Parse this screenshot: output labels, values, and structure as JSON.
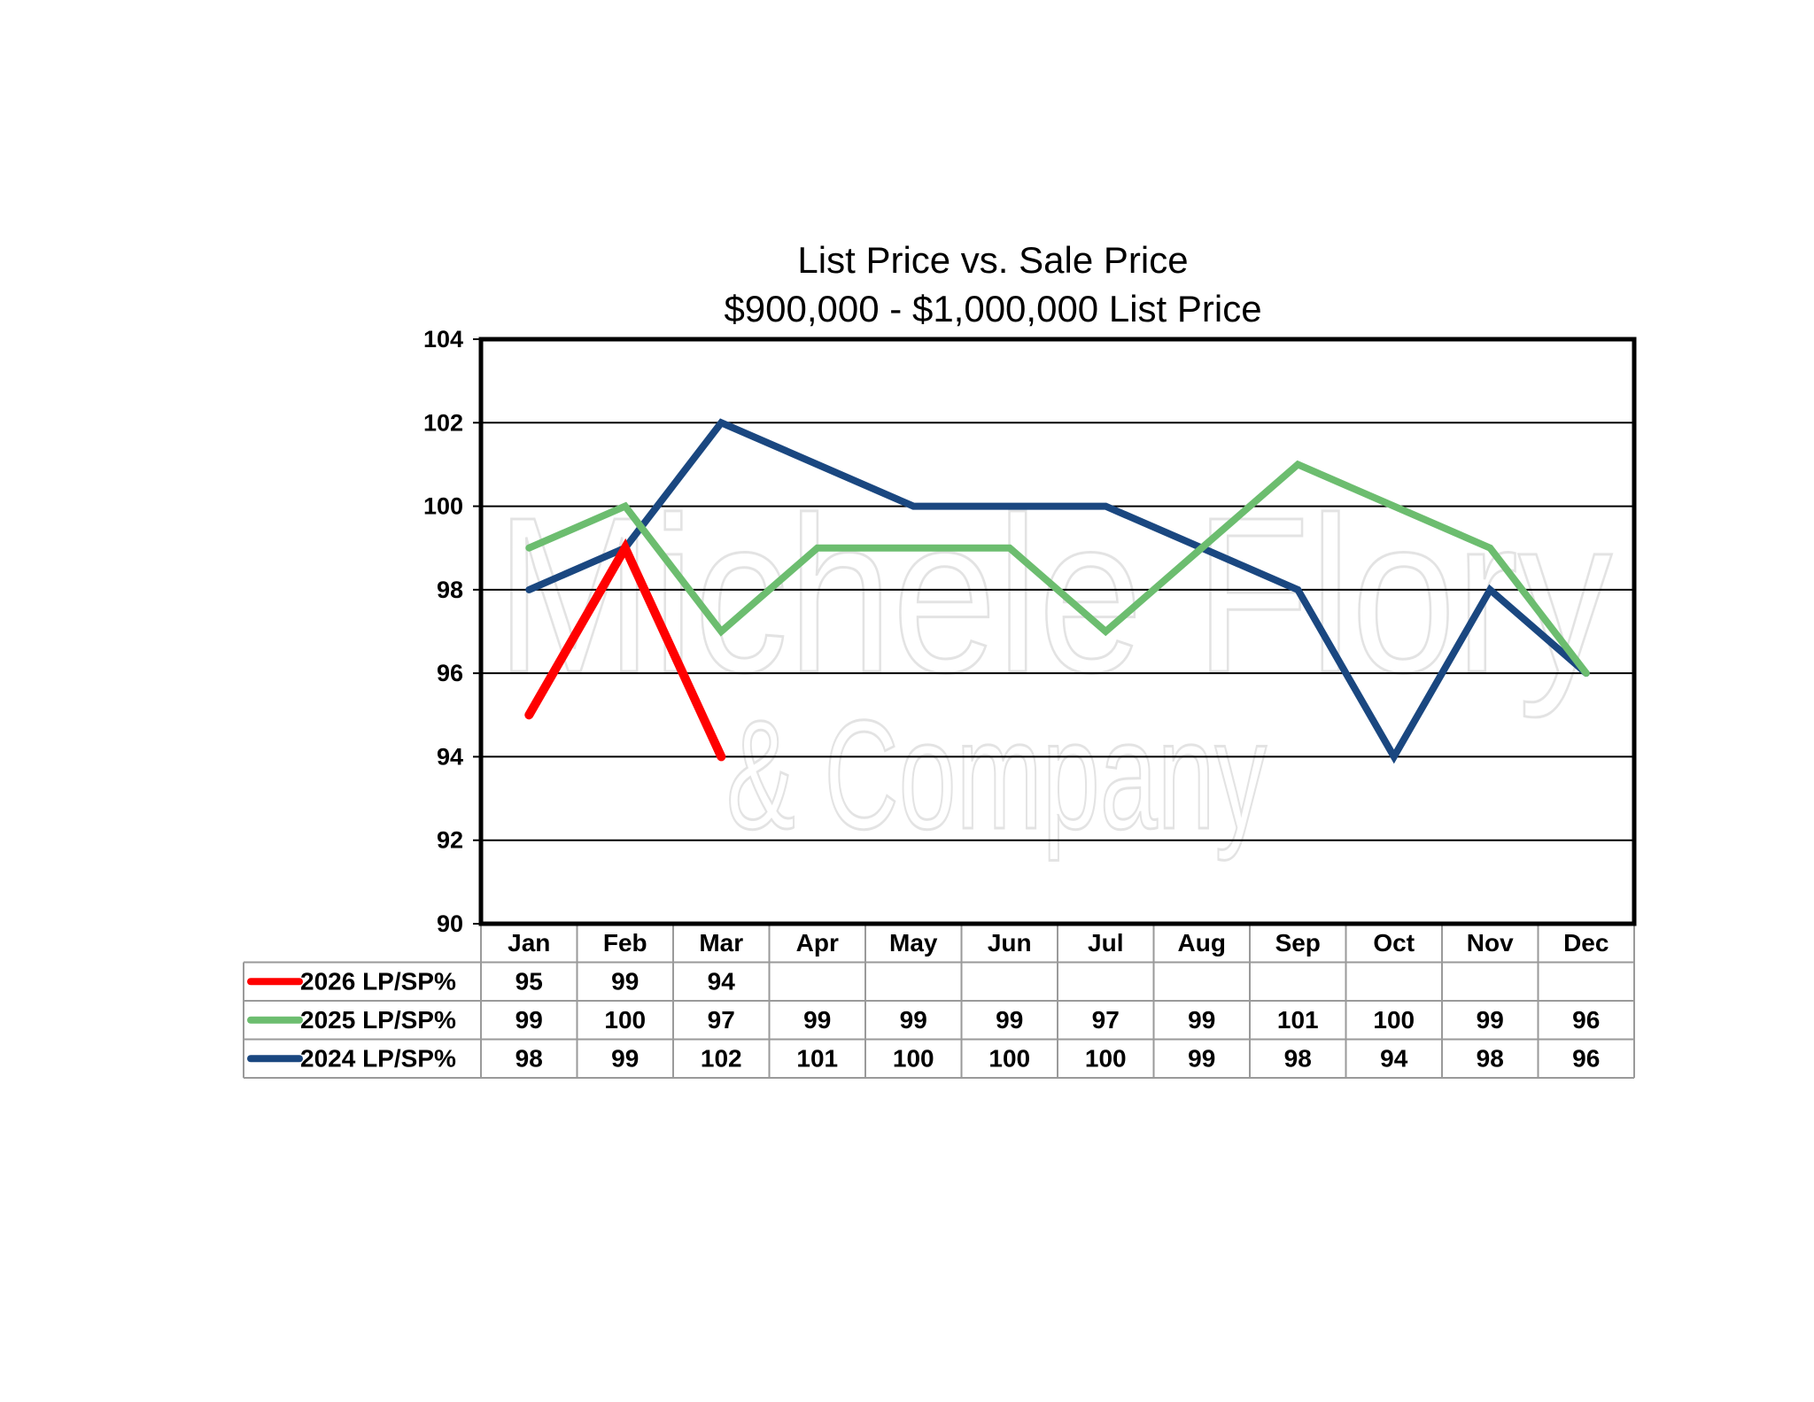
{
  "chart_data": {
    "type": "line",
    "title": "List Price vs. Sale Price",
    "subtitle": "$900,000 - $1,000,000 List Price",
    "categories": [
      "Jan",
      "Feb",
      "Mar",
      "Apr",
      "May",
      "Jun",
      "Jul",
      "Aug",
      "Sep",
      "Oct",
      "Nov",
      "Dec"
    ],
    "ylim": [
      90,
      104
    ],
    "yticks": [
      90,
      92,
      94,
      96,
      98,
      100,
      102,
      104
    ],
    "grid": true,
    "legend_placement": "data-table-bottom",
    "watermark": [
      "Michele Flory",
      "& Company"
    ],
    "series": [
      {
        "name": "2026 LP/SP%",
        "color": "#ff0000",
        "values": [
          95,
          99,
          94,
          null,
          null,
          null,
          null,
          null,
          null,
          null,
          null,
          null
        ]
      },
      {
        "name": "2025 LP/SP%",
        "color": "#6cbd6f",
        "values": [
          99,
          100,
          97,
          99,
          99,
          99,
          97,
          99,
          101,
          100,
          99,
          96
        ]
      },
      {
        "name": "2024 LP/SP%",
        "color": "#1a4780",
        "values": [
          98,
          99,
          102,
          101,
          100,
          100,
          100,
          99,
          98,
          94,
          98,
          96
        ]
      }
    ]
  }
}
